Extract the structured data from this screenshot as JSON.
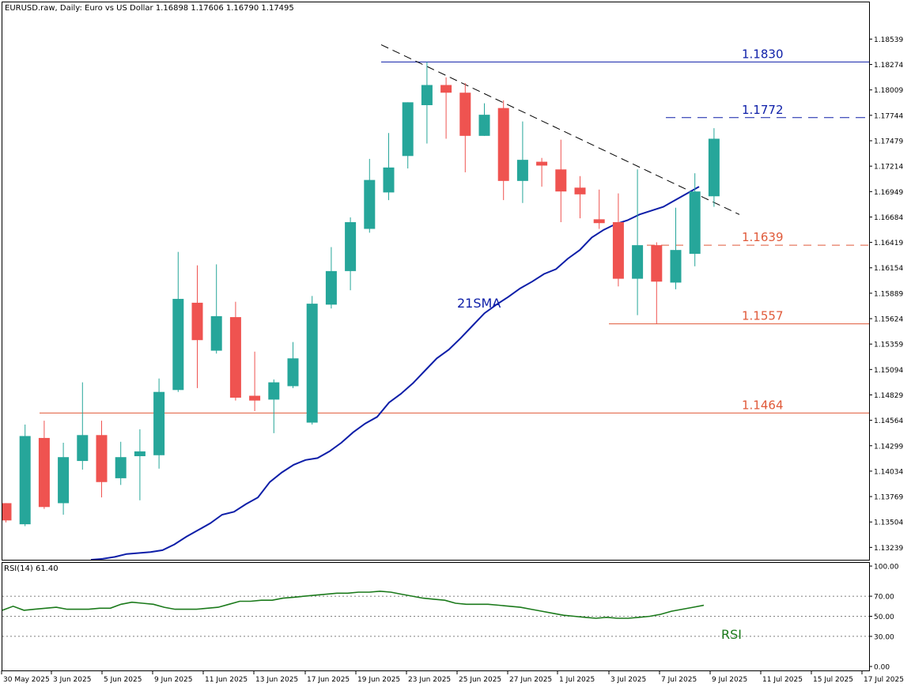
{
  "header": {
    "symbol_title": "EURUSD.raw, Daily:  Euro vs US Dollar  1.16898  1.17606  1.16790  1.17495"
  },
  "rsi_header": "RSI(14) 61.40",
  "colors": {
    "bull": "#26a69a",
    "bear": "#ef5350",
    "sma": "#0d1ea8",
    "rsi": "#1b7a1b",
    "resistance": "#0d1ea8",
    "support": "#e05a3a",
    "border": "#000000",
    "trendline": "#000000"
  },
  "chart_data": [
    {
      "type": "candlestick",
      "title": "EURUSD.raw, Daily:  Euro vs US Dollar  1.16898  1.17606  1.16790  1.17495",
      "ylim": [
        1.1311,
        1.1893
      ],
      "y_ticks": [
        "1.18539",
        "1.18274",
        "1.18009",
        "1.17744",
        "1.17479",
        "1.17214",
        "1.16949",
        "1.16684",
        "1.16419",
        "1.16154",
        "1.15889",
        "1.15624",
        "1.15359",
        "1.15094",
        "1.14829",
        "1.14564",
        "1.14299",
        "1.14034",
        "1.13769",
        "1.13504",
        "1.13239"
      ],
      "x_ticks": [
        "30 May 2025",
        "3 Jun 2025",
        "5 Jun 2025",
        "9 Jun 2025",
        "11 Jun 2025",
        "13 Jun 2025",
        "17 Jun 2025",
        "19 Jun 2025",
        "23 Jun 2025",
        "25 Jun 2025",
        "27 Jun 2025",
        "1 Jul 2025",
        "3 Jul 2025",
        "7 Jul 2025",
        "9 Jul 2025",
        "11 Jul 2025",
        "15 Jul 2025",
        "17 Jul 2025"
      ],
      "candles": [
        {
          "o": 1.137,
          "h": 1.137,
          "l": 1.135,
          "c": 1.1352
        },
        {
          "o": 1.1348,
          "h": 1.1452,
          "l": 1.1346,
          "c": 1.144
        },
        {
          "o": 1.1438,
          "h": 1.1456,
          "l": 1.1364,
          "c": 1.1366
        },
        {
          "o": 1.137,
          "h": 1.1433,
          "l": 1.1358,
          "c": 1.1418
        },
        {
          "o": 1.1414,
          "h": 1.1496,
          "l": 1.1405,
          "c": 1.1441
        },
        {
          "o": 1.1441,
          "h": 1.1456,
          "l": 1.1376,
          "c": 1.1392
        },
        {
          "o": 1.1396,
          "h": 1.1434,
          "l": 1.1389,
          "c": 1.1418
        },
        {
          "o": 1.1419,
          "h": 1.1447,
          "l": 1.1373,
          "c": 1.1424
        },
        {
          "o": 1.142,
          "h": 1.15,
          "l": 1.1406,
          "c": 1.1486
        },
        {
          "o": 1.1488,
          "h": 1.1632,
          "l": 1.1486,
          "c": 1.1583
        },
        {
          "o": 1.1579,
          "h": 1.1618,
          "l": 1.149,
          "c": 1.154
        },
        {
          "o": 1.1529,
          "h": 1.1619,
          "l": 1.1526,
          "c": 1.1565
        },
        {
          "o": 1.1564,
          "h": 1.158,
          "l": 1.1477,
          "c": 1.148
        },
        {
          "o": 1.1482,
          "h": 1.1528,
          "l": 1.1466,
          "c": 1.1477
        },
        {
          "o": 1.1478,
          "h": 1.1499,
          "l": 1.1443,
          "c": 1.1496
        },
        {
          "o": 1.1492,
          "h": 1.1538,
          "l": 1.149,
          "c": 1.1521
        },
        {
          "o": 1.1454,
          "h": 1.1586,
          "l": 1.1452,
          "c": 1.1578
        },
        {
          "o": 1.1577,
          "h": 1.1637,
          "l": 1.1573,
          "c": 1.1612
        },
        {
          "o": 1.1612,
          "h": 1.1668,
          "l": 1.1592,
          "c": 1.1663
        },
        {
          "o": 1.1656,
          "h": 1.1729,
          "l": 1.1652,
          "c": 1.1707
        },
        {
          "o": 1.1694,
          "h": 1.1756,
          "l": 1.1686,
          "c": 1.172
        },
        {
          "o": 1.1732,
          "h": 1.1788,
          "l": 1.1719,
          "c": 1.1788
        },
        {
          "o": 1.1785,
          "h": 1.183,
          "l": 1.1745,
          "c": 1.1806
        },
        {
          "o": 1.1806,
          "h": 1.1814,
          "l": 1.175,
          "c": 1.1798
        },
        {
          "o": 1.1798,
          "h": 1.1808,
          "l": 1.1715,
          "c": 1.1753
        },
        {
          "o": 1.1753,
          "h": 1.1787,
          "l": 1.1753,
          "c": 1.1775
        },
        {
          "o": 1.1782,
          "h": 1.179,
          "l": 1.1686,
          "c": 1.1706
        },
        {
          "o": 1.1706,
          "h": 1.1768,
          "l": 1.1683,
          "c": 1.1728
        },
        {
          "o": 1.1726,
          "h": 1.173,
          "l": 1.17,
          "c": 1.1722
        },
        {
          "o": 1.1718,
          "h": 1.1749,
          "l": 1.1663,
          "c": 1.1695
        },
        {
          "o": 1.1699,
          "h": 1.1711,
          "l": 1.1667,
          "c": 1.1692
        },
        {
          "o": 1.1666,
          "h": 1.1697,
          "l": 1.1656,
          "c": 1.1662
        },
        {
          "o": 1.1663,
          "h": 1.1693,
          "l": 1.1596,
          "c": 1.1604
        },
        {
          "o": 1.1604,
          "h": 1.1718,
          "l": 1.1566,
          "c": 1.1639
        },
        {
          "o": 1.1639,
          "h": 1.1642,
          "l": 1.1557,
          "c": 1.1601
        },
        {
          "o": 1.16,
          "h": 1.1678,
          "l": 1.1593,
          "c": 1.1634
        },
        {
          "o": 1.163,
          "h": 1.1714,
          "l": 1.1617,
          "c": 1.1695
        },
        {
          "o": 1.169,
          "h": 1.1761,
          "l": 1.1679,
          "c": 1.175
        }
      ],
      "sma21": {
        "name": "21SMA",
        "values": [
          1.1311,
          1.1312,
          1.1314,
          1.1317,
          1.1318,
          1.1319,
          1.1321,
          1.1327,
          1.1335,
          1.1342,
          1.1349,
          1.1358,
          1.1361,
          1.1369,
          1.1376,
          1.1392,
          1.1402,
          1.141,
          1.1415,
          1.1417,
          1.1424,
          1.1433,
          1.1444,
          1.1453,
          1.146,
          1.1475,
          1.1484,
          1.1495,
          1.1508,
          1.1521,
          1.153,
          1.1542,
          1.1555,
          1.1568,
          1.1577,
          1.1585,
          1.1594,
          1.1601,
          1.1609,
          1.1614,
          1.1625,
          1.1634,
          1.1647,
          1.1655,
          1.1661,
          1.1665,
          1.1671,
          1.1675,
          1.1679,
          1.1686,
          1.1693,
          1.17
        ]
      },
      "levels": [
        {
          "value": 1.183,
          "label": "1.1830",
          "style": "solid",
          "kind": "resistance"
        },
        {
          "value": 1.1772,
          "label": "1.1772",
          "style": "dashed",
          "kind": "resistance"
        },
        {
          "value": 1.1639,
          "label": "1.1639",
          "style": "dashed",
          "kind": "support"
        },
        {
          "value": 1.1557,
          "label": "1.1557",
          "style": "solid",
          "kind": "support"
        },
        {
          "value": 1.1464,
          "label": "1.1464",
          "style": "solid",
          "kind": "support"
        }
      ],
      "trendline": {
        "start_price": 1.1848,
        "end_price": 1.1671,
        "style": "dashed"
      }
    },
    {
      "type": "line",
      "title": "RSI(14) 61.40",
      "ylim": [
        0,
        100
      ],
      "y_ticks": [
        "100.00",
        "70.00",
        "50.00",
        "30.00",
        "0.00"
      ],
      "guides": [
        70,
        50,
        30
      ],
      "series": [
        {
          "name": "RSI",
          "values": [
            56,
            60,
            56,
            57,
            58,
            59,
            57,
            57,
            57,
            58,
            58,
            62,
            64,
            63,
            62,
            59,
            57,
            57,
            57,
            58,
            59,
            62,
            65,
            65,
            66,
            66,
            68,
            69,
            70,
            71,
            72,
            73,
            73,
            74,
            74,
            75,
            74,
            72,
            70,
            68,
            67,
            66,
            63,
            62,
            62,
            62,
            61,
            60,
            59,
            57,
            55,
            53,
            51,
            50,
            49,
            48,
            49,
            48,
            48,
            49,
            50,
            52,
            55,
            57,
            59,
            61
          ]
        }
      ]
    }
  ]
}
